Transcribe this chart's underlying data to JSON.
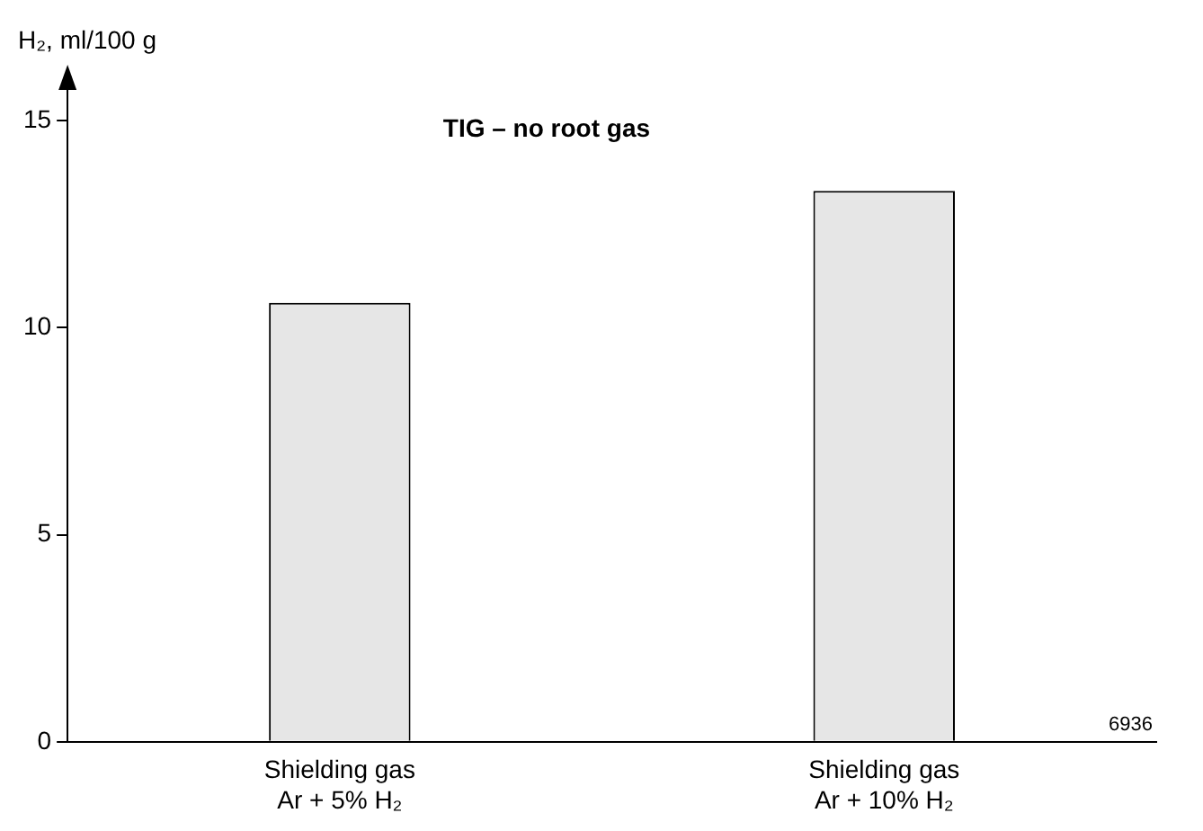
{
  "chart_data": {
    "type": "bar",
    "title": "TIG – no root gas",
    "ylabel": "H₂, ml/100 g",
    "categories": [
      "Shielding gas\nAr + 5% H₂",
      "Shielding gas\nAr + 10% H₂"
    ],
    "values": [
      10.6,
      13.3
    ],
    "color": "#e6e6e6",
    "ylim": [
      0,
      16
    ],
    "yticks": [
      0,
      5,
      10,
      15
    ],
    "grid": false,
    "legend": false,
    "annotations": [
      "6936"
    ]
  }
}
